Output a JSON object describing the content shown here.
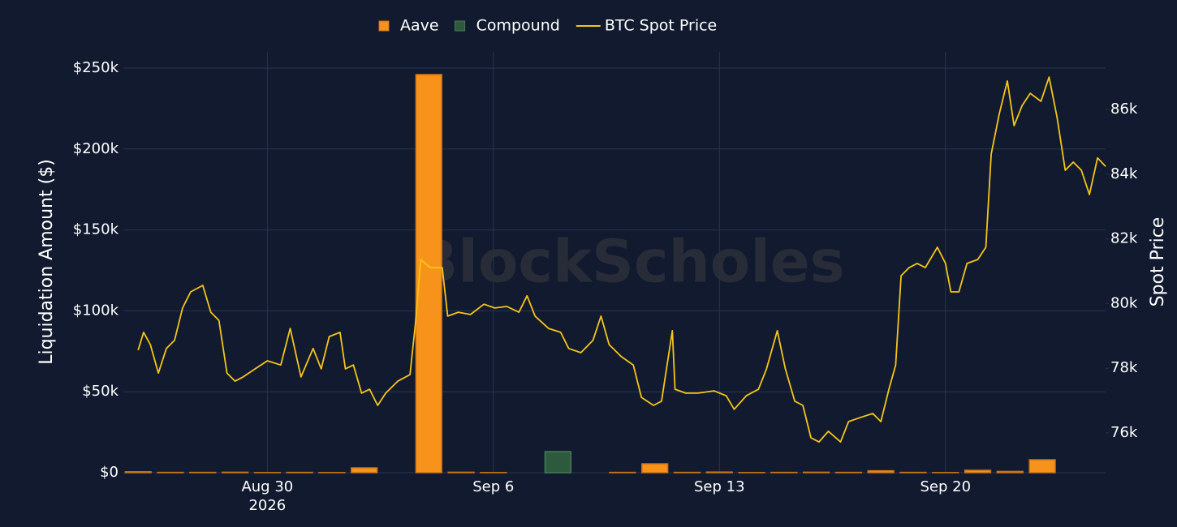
{
  "chart_data": {
    "type": "bar-line",
    "watermark": "BlockScholes",
    "y_label": "Liquidation Amount ($)",
    "y2_label": "Spot Price",
    "grid": true,
    "legend": "top",
    "xlim": [
      "2026-08-25T13:00",
      "2026-09-24T23:00"
    ],
    "xticks": [
      {
        "value": "2026-08-30T00:00",
        "label": "Aug 30\n2026"
      },
      {
        "value": "2026-09-06T00:00",
        "label": "Sep 6"
      },
      {
        "value": "2026-09-13T00:00",
        "label": "Sep 13"
      },
      {
        "value": "2026-09-20T00:00",
        "label": "Sep 20"
      }
    ],
    "ylim": [
      0,
      260000
    ],
    "yticks": [
      {
        "value": 0,
        "label": "$0"
      },
      {
        "value": 50000,
        "label": "$50k"
      },
      {
        "value": 100000,
        "label": "$100k"
      },
      {
        "value": 150000,
        "label": "$150k"
      },
      {
        "value": 200000,
        "label": "$200k"
      },
      {
        "value": 250000,
        "label": "$250k"
      }
    ],
    "y2lim": [
      74770,
      87780
    ],
    "y2ticks": [
      {
        "value": 76000,
        "label": "76k"
      },
      {
        "value": 78000,
        "label": "78k"
      },
      {
        "value": 80000,
        "label": "80k"
      },
      {
        "value": 82000,
        "label": "82k"
      },
      {
        "value": 84000,
        "label": "84k"
      },
      {
        "value": 86000,
        "label": "86k"
      }
    ],
    "bar_x": [
      "2026-08-26T00:00",
      "2026-08-27T00:00",
      "2026-08-28T00:00",
      "2026-08-29T00:00",
      "2026-08-30T00:00",
      "2026-08-31T00:00",
      "2026-09-01T00:00",
      "2026-09-02T00:00",
      "2026-09-03T00:00",
      "2026-09-04T00:00",
      "2026-09-05T00:00",
      "2026-09-06T00:00",
      "2026-09-07T00:00",
      "2026-09-08T00:00",
      "2026-09-09T00:00",
      "2026-09-10T00:00",
      "2026-09-11T00:00",
      "2026-09-12T00:00",
      "2026-09-13T00:00",
      "2026-09-14T00:00",
      "2026-09-15T00:00",
      "2026-09-16T00:00",
      "2026-09-17T00:00",
      "2026-09-18T00:00",
      "2026-09-19T00:00",
      "2026-09-20T00:00",
      "2026-09-21T00:00",
      "2026-09-22T00:00",
      "2026-09-23T00:00"
    ],
    "series": [
      {
        "name": "Aave",
        "kind": "bar",
        "color": "#f7931a",
        "stroke": "#c9731a",
        "values": [
          600,
          200,
          200,
          300,
          100,
          200,
          100,
          3000,
          0,
          246000,
          300,
          100,
          0,
          0,
          0,
          200,
          5500,
          200,
          400,
          100,
          200,
          300,
          200,
          1200,
          200,
          100,
          1500,
          800,
          8000
        ]
      },
      {
        "name": "Compound",
        "kind": "bar",
        "color": "#2d5a3d",
        "stroke": "#4a7a58",
        "values": [
          0,
          0,
          0,
          0,
          0,
          0,
          0,
          0,
          0,
          0,
          0,
          0,
          0,
          13000,
          0,
          0,
          0,
          0,
          0,
          0,
          0,
          0,
          0,
          0,
          0,
          0,
          0,
          0,
          0
        ]
      },
      {
        "name": "BTC Spot Price",
        "kind": "line",
        "axis": "y2",
        "color": "#f5c518",
        "x": [
          "2026-08-26T00:00",
          "2026-08-26T04:00",
          "2026-08-26T09:00",
          "2026-08-26T15:00",
          "2026-08-26T21:00",
          "2026-08-27T03:00",
          "2026-08-27T09:00",
          "2026-08-27T15:00",
          "2026-08-28T00:00",
          "2026-08-28T06:00",
          "2026-08-28T12:00",
          "2026-08-28T18:00",
          "2026-08-29T00:00",
          "2026-08-29T06:00",
          "2026-08-29T15:00",
          "2026-08-30T00:00",
          "2026-08-30T10:00",
          "2026-08-30T17:00",
          "2026-08-31T01:00",
          "2026-08-31T10:00",
          "2026-08-31T16:00",
          "2026-08-31T22:00",
          "2026-09-01T06:00",
          "2026-09-01T10:00",
          "2026-09-01T16:00",
          "2026-09-01T22:00",
          "2026-09-02T04:00",
          "2026-09-02T10:00",
          "2026-09-02T16:00",
          "2026-09-03T01:00",
          "2026-09-03T10:00",
          "2026-09-03T14:00",
          "2026-09-03T18:00",
          "2026-09-04T01:00",
          "2026-09-04T10:00",
          "2026-09-04T14:00",
          "2026-09-04T22:00",
          "2026-09-05T07:00",
          "2026-09-05T17:00",
          "2026-09-06T01:00",
          "2026-09-06T10:00",
          "2026-09-06T19:00",
          "2026-09-07T01:00",
          "2026-09-07T07:00",
          "2026-09-07T17:00",
          "2026-09-08T02:00",
          "2026-09-08T08:00",
          "2026-09-08T17:00",
          "2026-09-09T02:00",
          "2026-09-09T08:00",
          "2026-09-09T14:00",
          "2026-09-09T23:00",
          "2026-09-10T08:00",
          "2026-09-10T14:00",
          "2026-09-10T23:00",
          "2026-09-11T05:00",
          "2026-09-11T13:00",
          "2026-09-11T15:00",
          "2026-09-11T23:00",
          "2026-09-12T08:00",
          "2026-09-12T20:00",
          "2026-09-13T05:00",
          "2026-09-13T11:00",
          "2026-09-13T20:00",
          "2026-09-14T05:00",
          "2026-09-14T11:00",
          "2026-09-14T19:00",
          "2026-09-15T01:00",
          "2026-09-15T08:00",
          "2026-09-15T14:00",
          "2026-09-15T20:00",
          "2026-09-16T02:00",
          "2026-09-16T09:00",
          "2026-09-16T18:00",
          "2026-09-17T00:00",
          "2026-09-17T09:00",
          "2026-09-17T18:00",
          "2026-09-18T00:00",
          "2026-09-18T06:00",
          "2026-09-18T11:00",
          "2026-09-18T15:00",
          "2026-09-18T21:00",
          "2026-09-19T03:00",
          "2026-09-19T09:00",
          "2026-09-19T18:00",
          "2026-09-20T00:00",
          "2026-09-20T04:00",
          "2026-09-20T10:00",
          "2026-09-20T16:00",
          "2026-09-21T00:00",
          "2026-09-21T06:00",
          "2026-09-21T10:00",
          "2026-09-21T16:00",
          "2026-09-21T22:00",
          "2026-09-22T03:00",
          "2026-09-22T09:00",
          "2026-09-22T15:00",
          "2026-09-22T23:00",
          "2026-09-23T05:00",
          "2026-09-23T11:00",
          "2026-09-23T17:00",
          "2026-09-23T23:00",
          "2026-09-24T05:00",
          "2026-09-24T11:00",
          "2026-09-24T17:00",
          "2026-09-24T23:00"
        ],
        "values": [
          78560,
          79110,
          78730,
          77850,
          78610,
          78860,
          79860,
          80360,
          80560,
          79730,
          79480,
          77850,
          77600,
          77730,
          77980,
          78230,
          78100,
          79230,
          77730,
          78610,
          77980,
          78980,
          79110,
          77980,
          78100,
          77230,
          77350,
          76850,
          77230,
          77600,
          77800,
          79360,
          81360,
          81110,
          81110,
          79610,
          79730,
          79660,
          79980,
          79860,
          79910,
          79730,
          80240,
          79610,
          79230,
          79110,
          78610,
          78480,
          78860,
          79610,
          78730,
          78360,
          78100,
          77100,
          76850,
          76980,
          79160,
          77350,
          77230,
          77230,
          77300,
          77150,
          76730,
          77150,
          77350,
          77980,
          79160,
          77980,
          76980,
          76850,
          75850,
          75720,
          76050,
          75720,
          76350,
          76480,
          76600,
          76350,
          77350,
          78100,
          80860,
          81110,
          81240,
          81110,
          81740,
          81240,
          80360,
          80360,
          81240,
          81360,
          81740,
          84620,
          85870,
          86880,
          85500,
          86120,
          86500,
          86250,
          87000,
          85750,
          84120,
          84370,
          84120,
          83370,
          84500,
          84240
        ]
      }
    ]
  }
}
